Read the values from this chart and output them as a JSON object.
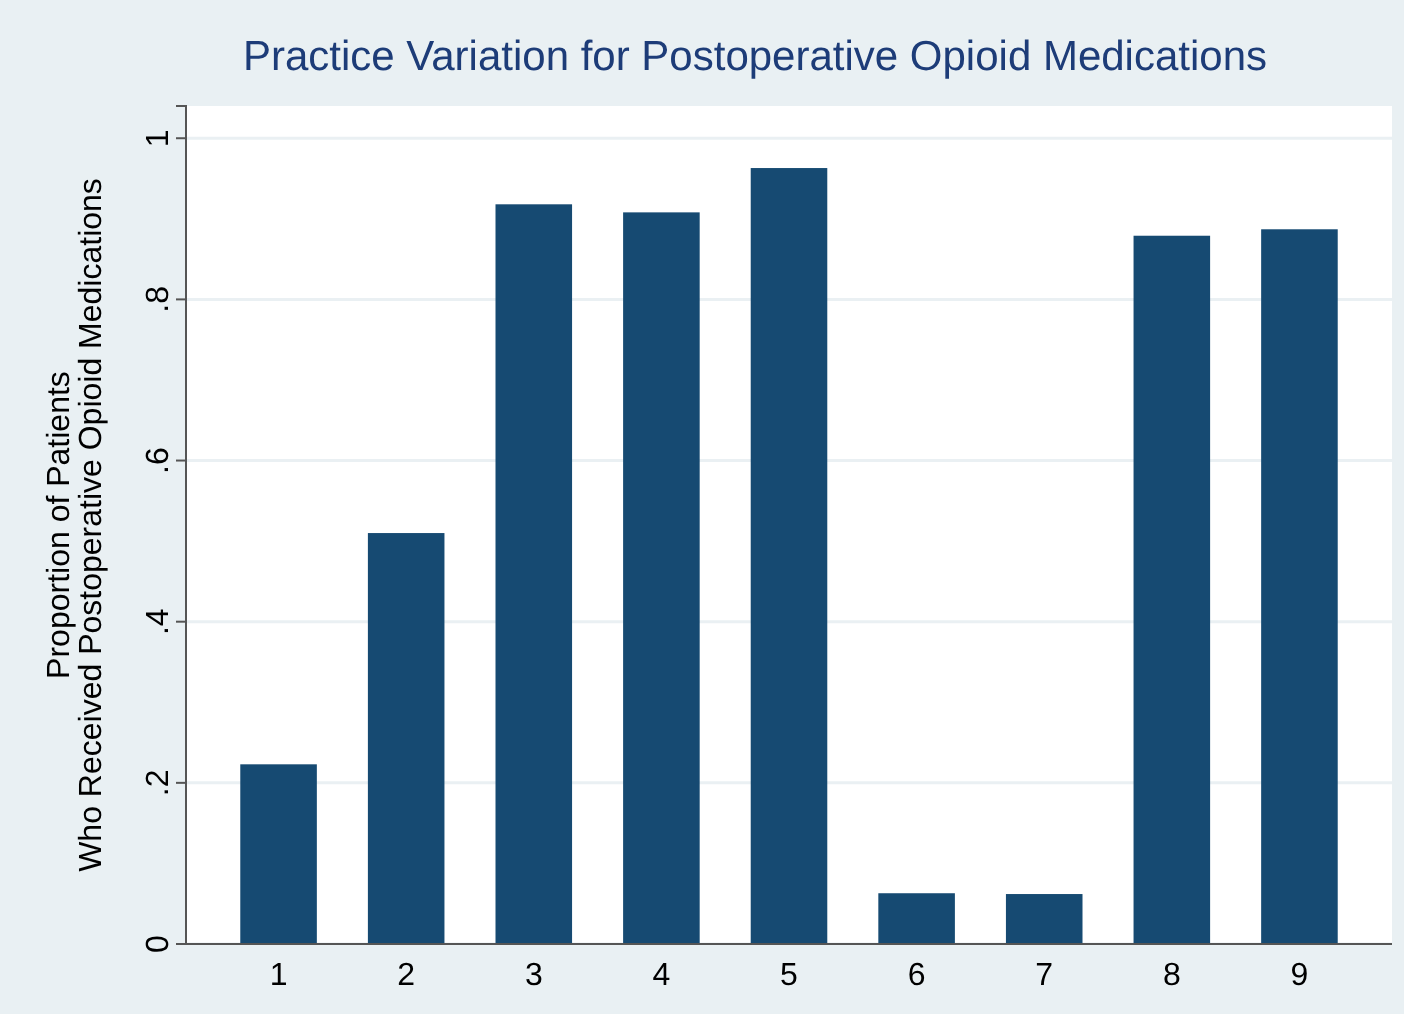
{
  "chart_data": {
    "type": "bar",
    "title": "Practice Variation for Postoperative Opioid Medications",
    "ylabel": "Proportion of Patients\nWho Received Postoperative Opioid Medications",
    "categories": [
      "1",
      "2",
      "3",
      "4",
      "5",
      "6",
      "7",
      "8",
      "9"
    ],
    "values": [
      0.223,
      0.51,
      0.918,
      0.908,
      0.963,
      0.063,
      0.062,
      0.879,
      0.887
    ],
    "color": "#164a72",
    "ylim": [
      0,
      1.04
    ],
    "yticks": [
      0,
      {
        "value": 0.2,
        "label": ".2"
      },
      {
        "value": 0.4,
        "label": ".4"
      },
      {
        "value": 0.6,
        "label": ".6"
      },
      {
        "value": 0.8,
        "label": ".8"
      },
      1
    ],
    "grid": "y"
  }
}
